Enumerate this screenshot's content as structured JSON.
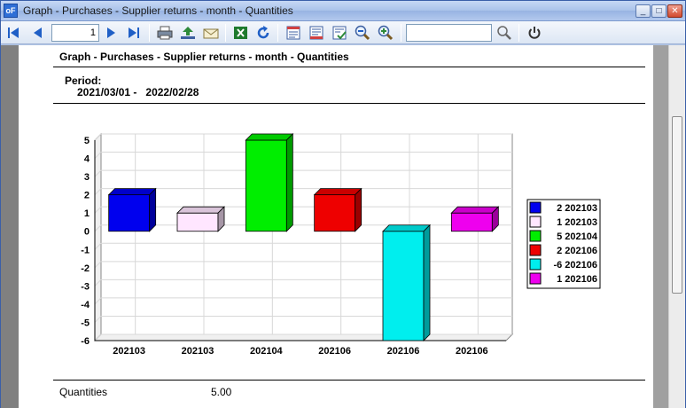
{
  "window": {
    "title": "Graph - Purchases - Supplier returns - month - Quantities",
    "app_icon": "oF",
    "minimize": "_",
    "maximize": "□",
    "close": "✕"
  },
  "toolbar": {
    "page_value": "1",
    "search_value": "",
    "icons": [
      "first-page-icon",
      "prev-page-icon",
      "next-page-icon",
      "last-page-icon",
      "print-icon",
      "export-icon",
      "email-icon",
      "excel-icon",
      "refresh-icon",
      "page-layout-icon",
      "page-setup-icon",
      "page-check-icon",
      "zoom-out-icon",
      "zoom-in-icon",
      "search-icon",
      "close-report-icon"
    ]
  },
  "report": {
    "title": "Graph - Purchases - Supplier returns - month - Quantities",
    "period_label": "Period:",
    "period_from": "2021/03/01 -",
    "period_to": "2022/02/28",
    "footer_label": "Quantities",
    "footer_value": "5.00"
  },
  "chart_data": {
    "type": "bar",
    "style": "3d",
    "categories": [
      "202103",
      "202103",
      "202104",
      "202106",
      "202106",
      "202106"
    ],
    "values": [
      2,
      1,
      5,
      2,
      -6,
      1
    ],
    "colors": [
      "#0000ee",
      "#ffe6ff",
      "#00ee00",
      "#ee0000",
      "#00eeee",
      "#ee00ee"
    ],
    "ylim": [
      -6,
      5
    ],
    "yticks": [
      5,
      4,
      3,
      2,
      1,
      0,
      -1,
      -2,
      -3,
      -4,
      -5,
      -6
    ],
    "grid": true,
    "legend_position": "right",
    "legend": [
      "2 202103",
      "1 202103",
      "5 202104",
      "2 202106",
      "-6 202106",
      "1 202106"
    ]
  }
}
